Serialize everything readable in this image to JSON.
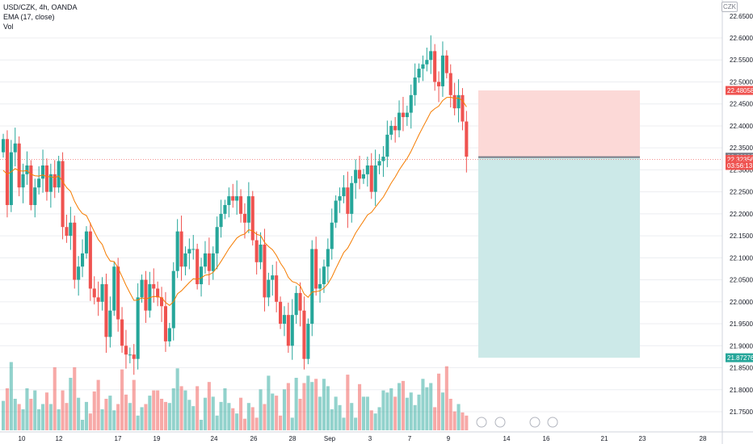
{
  "symbol_line": "USD/CZK, 4h, OANDA",
  "ema_line": "EMA (17, close)",
  "vol_line": "Vol",
  "currency": "CZK",
  "colors": {
    "up": "#26a69a",
    "down": "#ef5350",
    "ema": "#f57c00",
    "profit_zone": "#cce9e8",
    "loss_zone": "#fcd9d7",
    "axis_text": "#131722",
    "grid": "#ecedf1"
  },
  "chart_data": {
    "type": "candlestick",
    "y_ticks": [
      "22.60000",
      "22.55000",
      "22.50000",
      "22.45000",
      "22.40000",
      "22.35000",
      "22.30000",
      "22.25000",
      "22.20000",
      "22.15000",
      "22.10000",
      "22.05000",
      "22.00000",
      "21.95000",
      "21.90000",
      "21.85000",
      "21.80000",
      "21.75000"
    ],
    "top_label": "22.65000",
    "x_ticks": [
      "10",
      "12",
      "17",
      "19",
      "24",
      "26",
      "28",
      "Sep",
      "3",
      "7",
      "9",
      "14",
      "16",
      "21",
      "23",
      "28"
    ],
    "price_labels": [
      {
        "text": "22.48058",
        "value": 22.48058,
        "color": "#ef5350"
      },
      {
        "text": "22.32888",
        "value": 22.32888,
        "color": "#787b86"
      },
      {
        "text": "22.32356",
        "value": 22.32356,
        "color": "#ef5350"
      },
      {
        "text": "03:56:13",
        "value": 22.30999,
        "color": "#ef5350"
      },
      {
        "text": "21.87276",
        "value": 21.87276,
        "color": "#26a69a"
      }
    ],
    "position": {
      "stop": 22.48058,
      "entry": 22.32888,
      "target": 21.87276
    },
    "current_price": 22.32356,
    "candle_closes": [
      22.37,
      22.22,
      22.34,
      22.36,
      22.26,
      22.29,
      22.31,
      22.22,
      22.26,
      22.28,
      22.31,
      22.25,
      22.29,
      22.26,
      22.32,
      22.17,
      22.15,
      22.18,
      22.05,
      22.08,
      22.11,
      22.16,
      22.03,
      22.01,
      22.0,
      22.04,
      21.92,
      21.98,
      22.08,
      21.96,
      21.9,
      21.88,
      21.88,
      21.87,
      22.01,
      22.05,
      21.98,
      22.04,
      22.03,
      22.01,
      21.99,
      21.91,
      21.94,
      22.07,
      22.16,
      22.08,
      22.11,
      22.12,
      22.12,
      22.04,
      22.08,
      22.11,
      22.07,
      22.11,
      22.17,
      22.2,
      22.22,
      22.24,
      22.23,
      22.24,
      22.2,
      22.18,
      22.24,
      22.14,
      22.09,
      22.13,
      22.01,
      22.05,
      22.06,
      22.0,
      21.95,
      21.97,
      21.9,
      21.97,
      22.02,
      21.98,
      21.87,
      21.95,
      22.12,
      22.03,
      22.04,
      22.08,
      22.12,
      22.18,
      22.23,
      22.24,
      22.26,
      22.2,
      22.27,
      22.3,
      22.28,
      22.29,
      22.31,
      22.25,
      22.31,
      22.32,
      22.33,
      22.38,
      22.4,
      22.39,
      22.43,
      22.42,
      22.43,
      22.47,
      22.51,
      22.53,
      22.54,
      22.55,
      22.57,
      22.5,
      22.49,
      22.56,
      22.52,
      22.47,
      22.44,
      22.47,
      22.41,
      22.33
    ],
    "ema_period": 17,
    "volumes": [
      28,
      40,
      65,
      30,
      25,
      20,
      40,
      30,
      38,
      20,
      25,
      36,
      25,
      60,
      20,
      38,
      26,
      50,
      60,
      31,
      10,
      27,
      16,
      37,
      48,
      20,
      30,
      33,
      19,
      25,
      58,
      34,
      26,
      48,
      14,
      22,
      25,
      33,
      38,
      38,
      30,
      27,
      26,
      40,
      59,
      42,
      38,
      29,
      23,
      42,
      10,
      31,
      46,
      32,
      14,
      27,
      40,
      26,
      21,
      16,
      31,
      11,
      26,
      22,
      12,
      39,
      25,
      52,
      35,
      33,
      14,
      39,
      45,
      12,
      50,
      30,
      45,
      52,
      46,
      49,
      32,
      49,
      42,
      20,
      32,
      24,
      12,
      53,
      26,
      12,
      44,
      32,
      32,
      19,
      16,
      22,
      38,
      36,
      40,
      32,
      45,
      47,
      31,
      36,
      24,
      34,
      49,
      41,
      45,
      22,
      54,
      36,
      61,
      30,
      18,
      25,
      17,
      14
    ],
    "volume_axis_max": 100
  }
}
